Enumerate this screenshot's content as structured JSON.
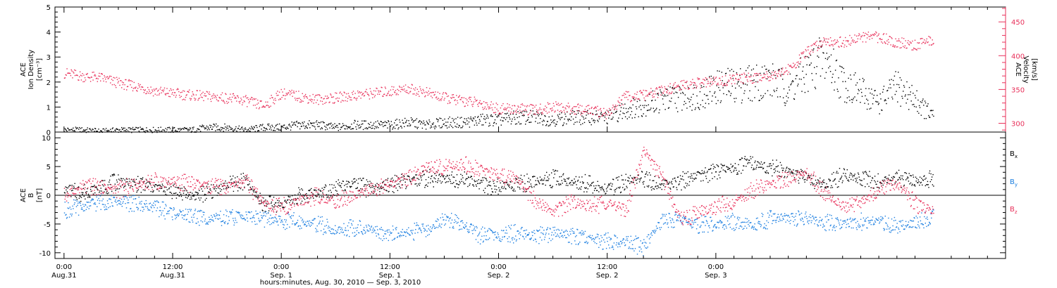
{
  "chart_data": [
    {
      "type": "scatter",
      "ylabel_lines": [
        "ACE",
        "Ion Density"
      ],
      "ylabel_unit": "[cm⁻³]",
      "y2label_lines": [
        "ACE",
        "Velocity"
      ],
      "y2label_unit": "[km/s]",
      "ylim": [
        0,
        5
      ],
      "yticks": [
        "0",
        "1",
        "2",
        "3",
        "4",
        "5"
      ],
      "y2lim": [
        287,
        472
      ],
      "y2ticks": [
        "300",
        "350",
        "400",
        "450"
      ],
      "colors": {
        "density": "#000000",
        "velocity": "#e8305a"
      },
      "series": [
        {
          "axis": "left",
          "color_key": "density",
          "x": [
            0,
            2,
            4,
            6,
            8,
            10,
            12,
            14,
            16,
            18,
            20,
            22,
            24,
            26,
            28,
            30,
            32,
            34,
            36,
            38,
            40,
            42,
            44,
            46,
            48,
            50,
            52,
            54,
            56,
            58,
            60,
            62,
            64,
            66,
            68,
            70,
            72,
            74,
            76,
            78,
            80,
            82,
            84,
            86,
            88,
            90,
            92,
            94,
            96
          ],
          "values": [
            0.1,
            0.1,
            0.05,
            0.1,
            0.1,
            0.1,
            0.1,
            0.1,
            0.2,
            0.2,
            0.1,
            0.2,
            0.2,
            0.3,
            0.3,
            0.2,
            0.3,
            0.3,
            0.3,
            0.4,
            0.3,
            0.4,
            0.4,
            0.5,
            0.5,
            0.6,
            0.6,
            0.5,
            0.6,
            0.6,
            0.6,
            0.9,
            1.1,
            1.3,
            1.4,
            1.5,
            1.8,
            1.9,
            2.0,
            2.1,
            1.7,
            2.4,
            3.0,
            2.0,
            1.6,
            1.2,
            1.8,
            1.3,
            0.6
          ]
        },
        {
          "axis": "right",
          "color_key": "velocity",
          "x": [
            0,
            2,
            4,
            6,
            8,
            10,
            12,
            14,
            16,
            18,
            20,
            22,
            24,
            26,
            28,
            30,
            32,
            34,
            36,
            38,
            40,
            42,
            44,
            46,
            48,
            50,
            52,
            54,
            56,
            58,
            60,
            62,
            64,
            66,
            68,
            70,
            72,
            74,
            76,
            78,
            80,
            82,
            84,
            86,
            88,
            90,
            92,
            94,
            96
          ],
          "values": [
            375,
            370,
            368,
            360,
            355,
            348,
            345,
            342,
            340,
            338,
            334,
            326,
            345,
            340,
            336,
            338,
            342,
            345,
            348,
            352,
            346,
            338,
            334,
            330,
            322,
            322,
            320,
            325,
            322,
            320,
            315,
            340,
            342,
            348,
            356,
            360,
            362,
            366,
            368,
            372,
            380,
            405,
            424,
            420,
            428,
            428,
            420,
            416,
            424
          ]
        }
      ]
    },
    {
      "type": "scatter",
      "ylabel_lines": [
        "ACE",
        "B"
      ],
      "ylabel_unit": "[nT]",
      "ylim": [
        -11,
        11
      ],
      "yticks": [
        "-10",
        "-5",
        "0",
        "5",
        "10"
      ],
      "legend_placement": "right",
      "colors": {
        "bx": "#000000",
        "by": "#1b7ee0",
        "bz": "#e8305a",
        "zero_line": "#000000"
      },
      "series": [
        {
          "name": "B",
          "sub": "x",
          "color_key": "bx",
          "x": [
            0,
            2,
            4,
            6,
            8,
            10,
            12,
            14,
            16,
            18,
            20,
            22,
            24,
            26,
            28,
            30,
            32,
            34,
            36,
            38,
            40,
            42,
            44,
            46,
            48,
            50,
            52,
            54,
            56,
            58,
            60,
            62,
            64,
            66,
            68,
            70,
            72,
            74,
            76,
            78,
            80,
            82,
            84,
            86,
            88,
            90,
            92,
            94,
            96
          ],
          "values": [
            1.0,
            0.5,
            1.5,
            2.5,
            2.0,
            1.5,
            1.0,
            0.0,
            0.5,
            2.0,
            2.5,
            -1.5,
            -1.5,
            0.0,
            0.5,
            1.5,
            2.0,
            1.0,
            2.0,
            2.5,
            3.0,
            3.0,
            3.0,
            2.0,
            1.5,
            2.0,
            2.5,
            3.0,
            2.5,
            2.0,
            1.0,
            2.5,
            3.0,
            2.0,
            2.5,
            3.5,
            4.0,
            5.0,
            5.5,
            5.0,
            4.0,
            3.0,
            2.0,
            3.5,
            3.0,
            2.5,
            3.0,
            2.5,
            3.0
          ]
        },
        {
          "name": "B",
          "sub": "y",
          "color_key": "by",
          "x": [
            0,
            2,
            4,
            6,
            8,
            10,
            12,
            14,
            16,
            18,
            20,
            22,
            24,
            26,
            28,
            30,
            32,
            34,
            36,
            38,
            40,
            42,
            44,
            46,
            48,
            50,
            52,
            54,
            56,
            58,
            60,
            62,
            64,
            66,
            68,
            70,
            72,
            74,
            76,
            78,
            80,
            82,
            84,
            86,
            88,
            90,
            92,
            94,
            96
          ],
          "values": [
            -2.5,
            -2.0,
            -1.0,
            -1.0,
            -1.5,
            -2.0,
            -3.0,
            -3.5,
            -4.0,
            -4.0,
            -3.5,
            -4.0,
            -4.5,
            -4.5,
            -5.0,
            -6.0,
            -5.5,
            -6.0,
            -6.5,
            -6.5,
            -6.0,
            -4.0,
            -5.0,
            -7.0,
            -7.0,
            -6.5,
            -7.0,
            -6.5,
            -7.0,
            -7.5,
            -8.0,
            -8.0,
            -9.0,
            -4.5,
            -4.0,
            -5.0,
            -5.0,
            -4.5,
            -5.0,
            -4.0,
            -3.5,
            -4.0,
            -4.5,
            -5.0,
            -4.5,
            -4.5,
            -5.5,
            -4.5,
            -3.5
          ]
        },
        {
          "name": "B",
          "sub": "z",
          "color_key": "bz",
          "x": [
            0,
            2,
            4,
            6,
            8,
            10,
            12,
            14,
            16,
            18,
            20,
            22,
            24,
            26,
            28,
            30,
            32,
            34,
            36,
            38,
            40,
            42,
            44,
            46,
            48,
            50,
            52,
            54,
            56,
            58,
            60,
            62,
            64,
            66,
            68,
            70,
            72,
            74,
            76,
            78,
            80,
            82,
            84,
            86,
            88,
            90,
            92,
            94,
            96
          ],
          "values": [
            0.0,
            1.5,
            1.5,
            1.0,
            2.0,
            2.5,
            2.5,
            2.0,
            1.5,
            1.5,
            2.5,
            -1.5,
            -2.0,
            -1.0,
            0.0,
            -1.0,
            0.0,
            1.0,
            2.0,
            3.0,
            5.0,
            5.0,
            5.5,
            4.5,
            3.5,
            3.0,
            -1.0,
            -3.0,
            -1.0,
            -2.0,
            -1.0,
            -3.0,
            8.0,
            3.0,
            -4.0,
            -3.0,
            -2.0,
            -1.0,
            1.0,
            2.0,
            3.0,
            4.0,
            0.5,
            -2.0,
            -1.0,
            1.0,
            2.0,
            -1.5,
            -2.5
          ]
        }
      ]
    }
  ],
  "xaxis": {
    "xlim": [
      -1,
      104
    ],
    "ticks": [
      {
        "x": 0,
        "top": "0:00",
        "bottom": "Aug.31"
      },
      {
        "x": 12,
        "top": "12:00",
        "bottom": "Aug.31"
      },
      {
        "x": 24,
        "top": "0:00",
        "bottom": "Sep. 1"
      },
      {
        "x": 36,
        "top": "12:00",
        "bottom": "Sep. 1"
      },
      {
        "x": 48,
        "top": "0:00",
        "bottom": "Sep. 2"
      },
      {
        "x": 60,
        "top": "12:00",
        "bottom": "Sep. 2"
      },
      {
        "x": 72,
        "top": "0:00",
        "bottom": "Sep. 3"
      }
    ],
    "title": "hours:minutes, Aug. 30, 2010 — Sep.  3, 2010"
  }
}
